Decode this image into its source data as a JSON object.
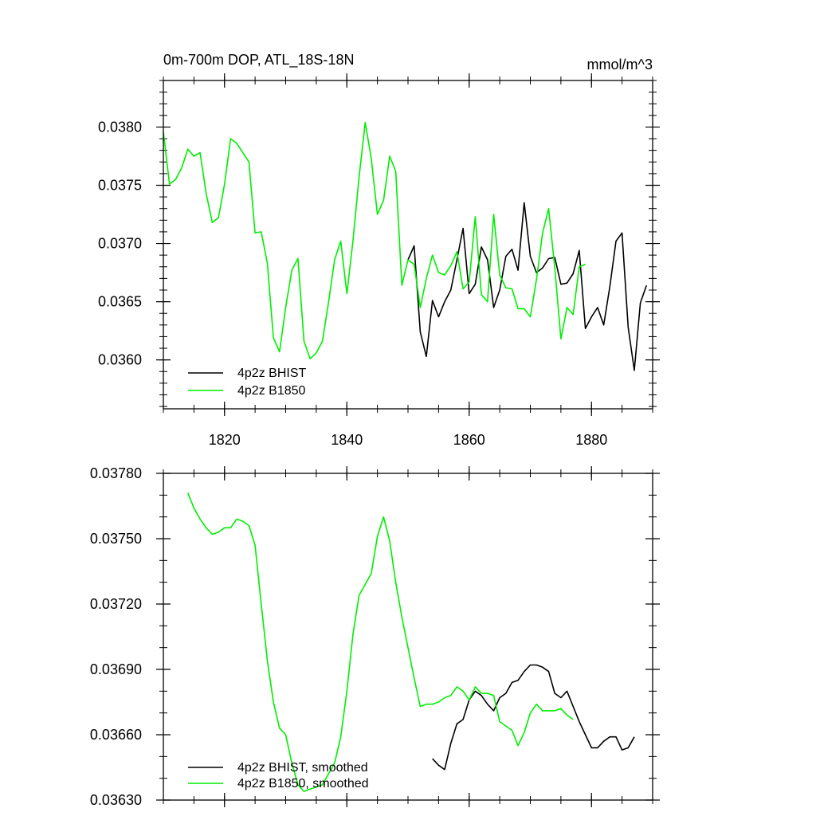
{
  "chart_data": [
    {
      "type": "line",
      "title": "0m-700m DOP, ATL_18S-18N",
      "units": "mmol/m^3",
      "xlim": [
        1810,
        1890
      ],
      "ylim": [
        0.03558,
        0.0384
      ],
      "xticks": [
        1820,
        1840,
        1860,
        1880
      ],
      "yticks": [
        0.036,
        0.0365,
        0.037,
        0.0375,
        0.038
      ],
      "ytick_labels": [
        "0.0360",
        "0.0365",
        "0.0370",
        "0.0375",
        "0.0380"
      ],
      "x_minor_step": 5,
      "y_minor_step": 0.0001,
      "legend_position": "bottom-left",
      "grid": false,
      "series": [
        {
          "name": "4p2z BHIST",
          "color": "#000000",
          "x": [
            1850,
            1851,
            1852,
            1853,
            1854,
            1855,
            1856,
            1857,
            1858,
            1859,
            1860,
            1861,
            1862,
            1863,
            1864,
            1865,
            1866,
            1867,
            1868,
            1869,
            1870,
            1871,
            1872,
            1873,
            1874,
            1875,
            1876,
            1877,
            1878,
            1879,
            1880,
            1881,
            1882,
            1883,
            1884,
            1885,
            1886,
            1887,
            1888,
            1889
          ],
          "y": [
            0.03686,
            0.03698,
            0.03624,
            0.03603,
            0.03651,
            0.03637,
            0.0365,
            0.0366,
            0.03686,
            0.03713,
            0.03657,
            0.03665,
            0.03697,
            0.03686,
            0.03645,
            0.0366,
            0.03689,
            0.03695,
            0.03677,
            0.03735,
            0.03689,
            0.03675,
            0.03679,
            0.03687,
            0.03688,
            0.03665,
            0.03666,
            0.03674,
            0.03694,
            0.03627,
            0.03637,
            0.03645,
            0.0363,
            0.03663,
            0.03702,
            0.03709,
            0.03628,
            0.03591,
            0.03649,
            0.03664
          ]
        },
        {
          "name": "4p2z B1850",
          "color": "#00ee00",
          "x": [
            1810,
            1811,
            1812,
            1813,
            1814,
            1815,
            1816,
            1817,
            1818,
            1819,
            1820,
            1821,
            1822,
            1823,
            1824,
            1825,
            1826,
            1827,
            1828,
            1829,
            1830,
            1831,
            1832,
            1833,
            1834,
            1835,
            1836,
            1837,
            1838,
            1839,
            1840,
            1841,
            1842,
            1843,
            1844,
            1845,
            1846,
            1847,
            1848,
            1849,
            1850,
            1851,
            1852,
            1853,
            1854,
            1855,
            1856,
            1857,
            1858,
            1859,
            1860,
            1861,
            1862,
            1863,
            1864,
            1865,
            1866,
            1867,
            1868,
            1869,
            1870,
            1871,
            1872,
            1873,
            1874,
            1875,
            1876,
            1877,
            1878,
            1879
          ],
          "y": [
            0.03796,
            0.03751,
            0.03755,
            0.03765,
            0.03781,
            0.03775,
            0.03778,
            0.03743,
            0.03718,
            0.03722,
            0.03751,
            0.0379,
            0.03786,
            0.03778,
            0.0377,
            0.03709,
            0.0371,
            0.03683,
            0.03619,
            0.03607,
            0.03645,
            0.03677,
            0.03687,
            0.03616,
            0.03601,
            0.03606,
            0.03616,
            0.03649,
            0.03686,
            0.03702,
            0.03657,
            0.03702,
            0.03757,
            0.03804,
            0.03773,
            0.03725,
            0.03737,
            0.03775,
            0.03762,
            0.03664,
            0.03686,
            0.03682,
            0.03645,
            0.0367,
            0.0369,
            0.03675,
            0.03673,
            0.03681,
            0.03693,
            0.03661,
            0.03667,
            0.03723,
            0.03656,
            0.0365,
            0.03725,
            0.03673,
            0.03662,
            0.03661,
            0.03644,
            0.03644,
            0.03637,
            0.03669,
            0.03709,
            0.0373,
            0.03679,
            0.03618,
            0.03645,
            0.03639,
            0.0368,
            0.03682
          ]
        }
      ]
    },
    {
      "type": "line",
      "title": "",
      "xlim": [
        1810,
        1890
      ],
      "ylim": [
        0.0363,
        0.0378
      ],
      "xticks": [
        1820,
        1840,
        1860,
        1880
      ],
      "yticks": [
        0.0363,
        0.0366,
        0.0369,
        0.0372,
        0.0375,
        0.0378
      ],
      "ytick_labels": [
        "0.03630",
        "0.03660",
        "0.03690",
        "0.03720",
        "0.03750",
        "0.03780"
      ],
      "x_minor_step": 5,
      "y_minor_step": 0.0001,
      "legend_position": "bottom-left",
      "grid": false,
      "series": [
        {
          "name": "4p2z BHIST, smoothed",
          "color": "#000000",
          "x": [
            1854,
            1855,
            1856,
            1857,
            1858,
            1859,
            1860,
            1861,
            1862,
            1863,
            1864,
            1865,
            1866,
            1867,
            1868,
            1869,
            1870,
            1871,
            1872,
            1873,
            1874,
            1875,
            1876,
            1877,
            1878,
            1879,
            1880,
            1881,
            1882,
            1883,
            1884,
            1885,
            1886,
            1887
          ],
          "y": [
            0.03649,
            0.03646,
            0.03644,
            0.03656,
            0.03665,
            0.03667,
            0.03676,
            0.0368,
            0.03678,
            0.03674,
            0.03671,
            0.03677,
            0.03679,
            0.03684,
            0.03685,
            0.03689,
            0.03692,
            0.03692,
            0.03691,
            0.03689,
            0.03679,
            0.03677,
            0.0368,
            0.03673,
            0.03666,
            0.0366,
            0.03654,
            0.03654,
            0.03657,
            0.03659,
            0.03659,
            0.03653,
            0.03654,
            0.03659
          ]
        },
        {
          "name": "4p2z B1850, smoothed",
          "color": "#00ee00",
          "x": [
            1814,
            1815,
            1816,
            1817,
            1818,
            1819,
            1820,
            1821,
            1822,
            1823,
            1824,
            1825,
            1826,
            1827,
            1828,
            1829,
            1830,
            1831,
            1832,
            1833,
            1834,
            1835,
            1836,
            1837,
            1838,
            1839,
            1840,
            1841,
            1842,
            1843,
            1844,
            1845,
            1846,
            1847,
            1848,
            1849,
            1850,
            1851,
            1852,
            1853,
            1854,
            1855,
            1856,
            1857,
            1858,
            1859,
            1860,
            1861,
            1862,
            1863,
            1864,
            1865,
            1866,
            1867,
            1868,
            1869,
            1870,
            1871,
            1872,
            1873,
            1874,
            1875,
            1876,
            1877
          ],
          "y": [
            0.03771,
            0.03764,
            0.03759,
            0.03755,
            0.03752,
            0.03753,
            0.03755,
            0.03755,
            0.03759,
            0.03758,
            0.03756,
            0.03747,
            0.0372,
            0.03694,
            0.03675,
            0.03663,
            0.0366,
            0.03647,
            0.03637,
            0.03634,
            0.03635,
            0.03636,
            0.03637,
            0.03642,
            0.03647,
            0.03659,
            0.0368,
            0.03706,
            0.03724,
            0.03729,
            0.03734,
            0.03751,
            0.0376,
            0.03749,
            0.0373,
            0.03714,
            0.037,
            0.03686,
            0.03673,
            0.03674,
            0.03674,
            0.03675,
            0.03677,
            0.03678,
            0.03682,
            0.0368,
            0.03676,
            0.03682,
            0.03679,
            0.03679,
            0.03678,
            0.03666,
            0.03664,
            0.03662,
            0.03655,
            0.03661,
            0.0367,
            0.03674,
            0.03671,
            0.03671,
            0.03671,
            0.03672,
            0.03669,
            0.03667
          ]
        }
      ]
    }
  ]
}
